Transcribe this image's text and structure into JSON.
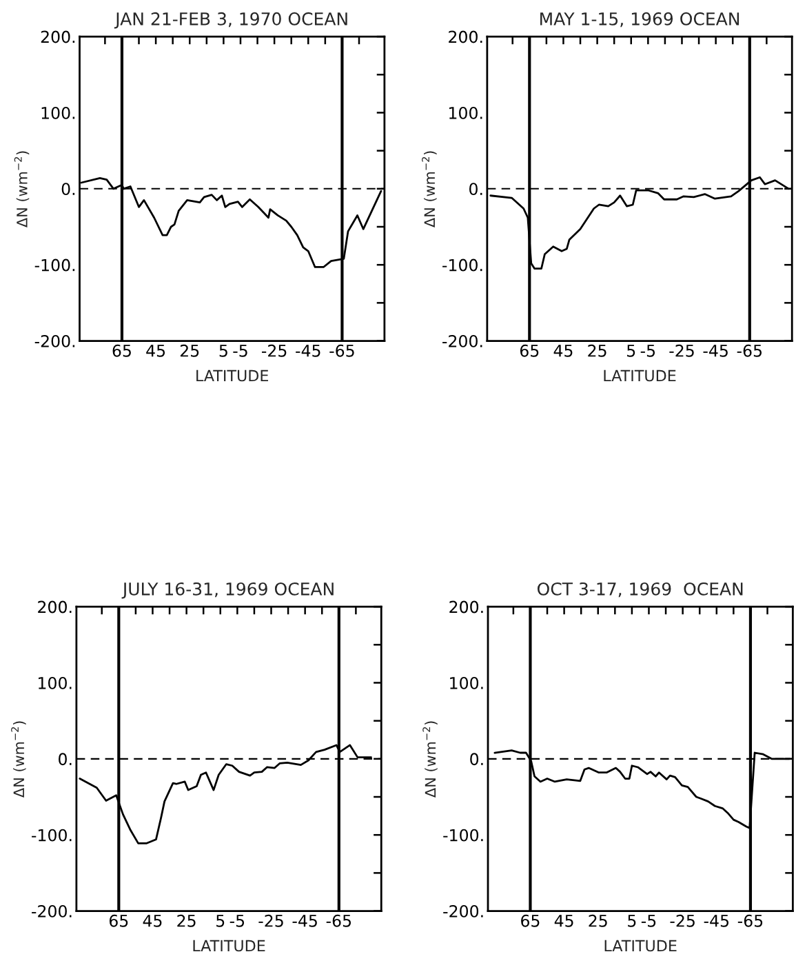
{
  "chart_data": [
    {
      "type": "line",
      "title": "JAN 21-FEB 3, 1970 OCEAN",
      "xlabel": "LATITUDE",
      "ylabel": "ΔN (wm$^{−2}$)",
      "xlim": [
        90,
        -90
      ],
      "ylim": [
        -200,
        200
      ],
      "xticks": [
        {
          "value": 75,
          "label": null
        },
        65,
        {
          "value": 55,
          "label": null
        },
        45,
        {
          "value": 35,
          "label": null
        },
        25,
        {
          "value": 15,
          "label": null
        },
        5,
        -5,
        {
          "value": -15,
          "label": null
        },
        -25,
        {
          "value": -35,
          "label": null
        },
        -45,
        {
          "value": -55,
          "label": null
        },
        -65,
        {
          "value": -75,
          "label": null
        }
      ],
      "yticks": [
        {
          "value": -200,
          "label": "-200."
        },
        {
          "value": -150,
          "label": null
        },
        {
          "value": -100,
          "label": "-100."
        },
        {
          "value": -50,
          "label": null
        },
        {
          "value": 0,
          "label": "0."
        },
        {
          "value": 50,
          "label": null
        },
        {
          "value": 100,
          "label": "100."
        },
        {
          "value": 150,
          "label": null
        },
        {
          "value": 200,
          "label": "200."
        }
      ],
      "ref_lines": [
        {
          "axis": "x",
          "value": 65,
          "color": "#000000",
          "line_style": "solid"
        },
        {
          "axis": "x",
          "value": -65,
          "color": "#000000",
          "line_style": "solid"
        },
        {
          "axis": "y",
          "value": 0,
          "color": "#000000",
          "line_style": "dashed"
        }
      ],
      "series": [
        {
          "color": "#000000",
          "x": [
            89,
            78,
            74,
            70,
            65,
            64,
            60,
            55,
            52,
            46,
            41,
            38.5,
            36,
            34,
            31.5,
            26.5,
            19,
            16.5,
            12,
            9,
            6,
            4,
            1.5,
            -3.5,
            -6,
            -10.5,
            -15.5,
            -21.5,
            -22.5,
            -27,
            -32,
            -35,
            -38.5,
            -42,
            -45,
            -49,
            -54,
            -58.5,
            -66,
            -68.5,
            -74,
            -77.5,
            -88
          ],
          "values": [
            8,
            14,
            12,
            0,
            5,
            0,
            3,
            -24,
            -15,
            -38,
            -61,
            -61,
            -50,
            -47,
            -29,
            -15,
            -18,
            -11,
            -8,
            -15,
            -9,
            -24,
            -20,
            -17,
            -24,
            -14,
            -24,
            -38,
            -27,
            -35,
            -42,
            -50,
            -61,
            -77,
            -82,
            -103,
            -103,
            -95,
            -92,
            -56,
            -35,
            -53,
            -3
          ]
        }
      ]
    },
    {
      "type": "line",
      "title": "MAY 1-15, 1969 OCEAN",
      "xlabel": "LATITUDE",
      "ylabel": "ΔN (wm$^{−2}$)",
      "xlim": [
        90,
        -90
      ],
      "ylim": [
        -200,
        200
      ],
      "xticks": [
        {
          "value": 75,
          "label": null
        },
        65,
        {
          "value": 55,
          "label": null
        },
        45,
        {
          "value": 35,
          "label": null
        },
        25,
        {
          "value": 15,
          "label": null
        },
        5,
        -5,
        {
          "value": -15,
          "label": null
        },
        -25,
        {
          "value": -35,
          "label": null
        },
        -45,
        {
          "value": -55,
          "label": null
        },
        -65,
        {
          "value": -75,
          "label": null
        }
      ],
      "yticks": [
        {
          "value": -200,
          "label": "-200."
        },
        {
          "value": -150,
          "label": null
        },
        {
          "value": -100,
          "label": "-100."
        },
        {
          "value": -50,
          "label": null
        },
        {
          "value": 0,
          "label": "0."
        },
        {
          "value": 50,
          "label": null
        },
        {
          "value": 100,
          "label": "100."
        },
        {
          "value": 150,
          "label": null
        },
        {
          "value": 200,
          "label": "200."
        }
      ],
      "ref_lines": [
        {
          "axis": "x",
          "value": 65,
          "color": "#000000",
          "line_style": "solid"
        },
        {
          "axis": "x",
          "value": -65,
          "color": "#000000",
          "line_style": "solid"
        },
        {
          "axis": "y",
          "value": 0,
          "color": "#000000",
          "line_style": "dashed"
        }
      ],
      "series": [
        {
          "color": "#000000",
          "x": [
            88,
            75.5,
            68.5,
            66,
            64,
            62,
            58,
            56,
            51,
            46,
            43,
            41.5,
            35,
            27,
            24,
            18.5,
            15,
            11.5,
            7.5,
            4,
            2,
            -5,
            -11,
            -14.5,
            -22,
            -26,
            -32,
            -38.5,
            -44.5,
            -54,
            -58.5,
            -66,
            -71,
            -74,
            -80,
            -88
          ],
          "values": [
            -9,
            -12,
            -26,
            -38,
            -98,
            -105,
            -105,
            -86,
            -76,
            -82,
            -79,
            -67,
            -53,
            -26,
            -21,
            -23,
            -18,
            -9,
            -23,
            -21,
            -2,
            -2,
            -6,
            -14,
            -14,
            -10,
            -11,
            -7,
            -13,
            -10,
            -3,
            11,
            15,
            6,
            11,
            0
          ]
        }
      ]
    },
    {
      "type": "line",
      "title": "JULY 16-31, 1969 OCEAN",
      "xlabel": "LATITUDE",
      "ylabel": "ΔN (wm$^{−2}$)",
      "xlim": [
        90,
        -90
      ],
      "ylim": [
        -200,
        200
      ],
      "xticks": [
        {
          "value": 75,
          "label": null
        },
        65,
        {
          "value": 55,
          "label": null
        },
        45,
        {
          "value": 35,
          "label": null
        },
        25,
        {
          "value": 15,
          "label": null
        },
        5,
        -5,
        {
          "value": -15,
          "label": null
        },
        -25,
        {
          "value": -35,
          "label": null
        },
        -45,
        {
          "value": -55,
          "label": null
        },
        -65,
        {
          "value": -75,
          "label": null
        }
      ],
      "yticks": [
        {
          "value": -200,
          "label": "-200."
        },
        {
          "value": -150,
          "label": null
        },
        {
          "value": -100,
          "label": "-100."
        },
        {
          "value": -50,
          "label": null
        },
        {
          "value": 0,
          "label": "0."
        },
        {
          "value": 50,
          "label": null
        },
        {
          "value": 100,
          "label": "100."
        },
        {
          "value": 150,
          "label": null
        },
        {
          "value": 200,
          "label": "200."
        }
      ],
      "ref_lines": [
        {
          "axis": "x",
          "value": 65,
          "color": "#000000",
          "line_style": "solid"
        },
        {
          "axis": "x",
          "value": -65,
          "color": "#000000",
          "line_style": "solid"
        },
        {
          "axis": "y",
          "value": 0,
          "color": "#000000",
          "line_style": "dashed"
        }
      ],
      "series": [
        {
          "color": "#000000",
          "x": [
            88,
            78,
            72.5,
            66.5,
            62.5,
            58,
            53.5,
            48.5,
            43,
            40,
            38,
            33,
            31,
            26,
            24,
            19,
            16.5,
            13.5,
            9,
            6,
            1.5,
            -2,
            -6,
            -12.5,
            -15,
            -19.5,
            -22.5,
            -27,
            -30,
            -34.5,
            -42.5,
            -47,
            -51.5,
            -56.5,
            -63.5,
            -65.5,
            -71.5,
            -76,
            -84
          ],
          "values": [
            -26,
            -38,
            -55,
            -48,
            -73,
            -94,
            -111,
            -111,
            -106,
            -77,
            -56,
            -32,
            -33,
            -30,
            -41,
            -36,
            -21,
            -18,
            -41,
            -21,
            -7,
            -9,
            -17,
            -22,
            -18,
            -17,
            -11,
            -12,
            -6,
            -5,
            -8,
            -2,
            9,
            12,
            18,
            9,
            18,
            2,
            2
          ]
        }
      ]
    },
    {
      "type": "line",
      "title": "OCT 3-17, 1969  OCEAN",
      "xlabel": "LATITUDE",
      "ylabel": "ΔN (wm$^{−2}$)",
      "xlim": [
        90,
        -90
      ],
      "ylim": [
        -200,
        200
      ],
      "xticks": [
        {
          "value": 75,
          "label": null
        },
        65,
        {
          "value": 55,
          "label": null
        },
        45,
        {
          "value": 35,
          "label": null
        },
        25,
        {
          "value": 15,
          "label": null
        },
        5,
        -5,
        {
          "value": -15,
          "label": null
        },
        -25,
        {
          "value": -35,
          "label": null
        },
        -45,
        {
          "value": -55,
          "label": null
        },
        -65,
        {
          "value": -75,
          "label": null
        }
      ],
      "yticks": [
        {
          "value": -200,
          "label": "-200."
        },
        {
          "value": -150,
          "label": null
        },
        {
          "value": -100,
          "label": "-100."
        },
        {
          "value": -50,
          "label": null
        },
        {
          "value": 0,
          "label": "0."
        },
        {
          "value": 50,
          "label": null
        },
        {
          "value": 100,
          "label": "100."
        },
        {
          "value": 150,
          "label": null
        },
        {
          "value": 200,
          "label": "200."
        }
      ],
      "ref_lines": [
        {
          "axis": "x",
          "value": 65,
          "color": "#000000",
          "line_style": "solid"
        },
        {
          "axis": "x",
          "value": -65,
          "color": "#000000",
          "line_style": "solid"
        },
        {
          "axis": "y",
          "value": 0,
          "color": "#000000",
          "line_style": "dashed"
        }
      ],
      "series": [
        {
          "color": "#000000",
          "x": [
            86,
            76,
            71,
            67.5,
            64.5,
            62.5,
            59,
            55,
            50.5,
            43.5,
            35.5,
            33,
            30.5,
            24.5,
            20,
            14.5,
            12,
            9,
            6.5,
            5,
            1.5,
            -4,
            -6,
            -9,
            -11,
            -15.5,
            -17.5,
            -20.5,
            -24.5,
            -28,
            -33,
            -35.5,
            -40,
            -44,
            -48.5,
            -51.5,
            -55,
            -58,
            -62.5,
            -64.5,
            -67.5,
            -72.5,
            -77.5,
            -88
          ],
          "values": [
            8,
            11,
            8,
            8,
            -3,
            -23,
            -30,
            -26,
            -30,
            -27,
            -29,
            -14,
            -12,
            -18,
            -18,
            -12,
            -17,
            -26,
            -26,
            -9,
            -11,
            -20,
            -17,
            -23,
            -18,
            -27,
            -22,
            -24,
            -35,
            -37,
            -50,
            -52,
            -56,
            -62,
            -65,
            -71,
            -80,
            -83,
            -89,
            -91,
            8,
            6,
            0,
            0
          ]
        }
      ]
    }
  ]
}
